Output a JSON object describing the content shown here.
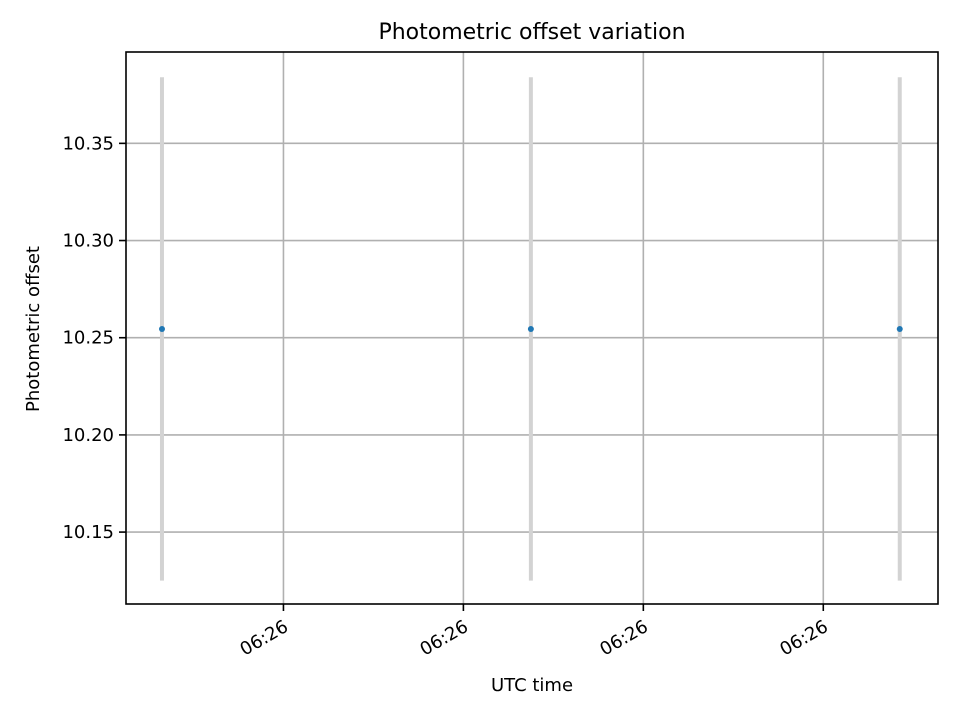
{
  "chart_data": {
    "type": "scatter",
    "title": "Photometric offset variation",
    "xlabel": "UTC time",
    "ylabel": "Photometric offset",
    "x_tick_labels": [
      "06:26",
      "06:26",
      "06:26",
      "06:26"
    ],
    "x_ticks": [
      0.8,
      1.6,
      2.4,
      3.2
    ],
    "xlim": [
      0.1,
      3.71
    ],
    "ylim": [
      10.113,
      10.397
    ],
    "y_ticks": [
      10.15,
      10.2,
      10.25,
      10.3,
      10.35
    ],
    "y_tick_labels": [
      "10.15",
      "10.20",
      "10.25",
      "10.30",
      "10.35"
    ],
    "points": [
      {
        "x": 0.26,
        "y": 10.2545,
        "yerr_low": 10.125,
        "yerr_high": 10.384
      },
      {
        "x": 1.9,
        "y": 10.2545,
        "yerr_low": 10.125,
        "yerr_high": 10.384
      },
      {
        "x": 3.54,
        "y": 10.2545,
        "yerr_low": 10.125,
        "yerr_high": 10.384
      }
    ],
    "grid": true,
    "colors": {
      "marker": "#1f77b4",
      "errorbar": "#d3d3d3",
      "grid": "#b0b0b0"
    }
  }
}
